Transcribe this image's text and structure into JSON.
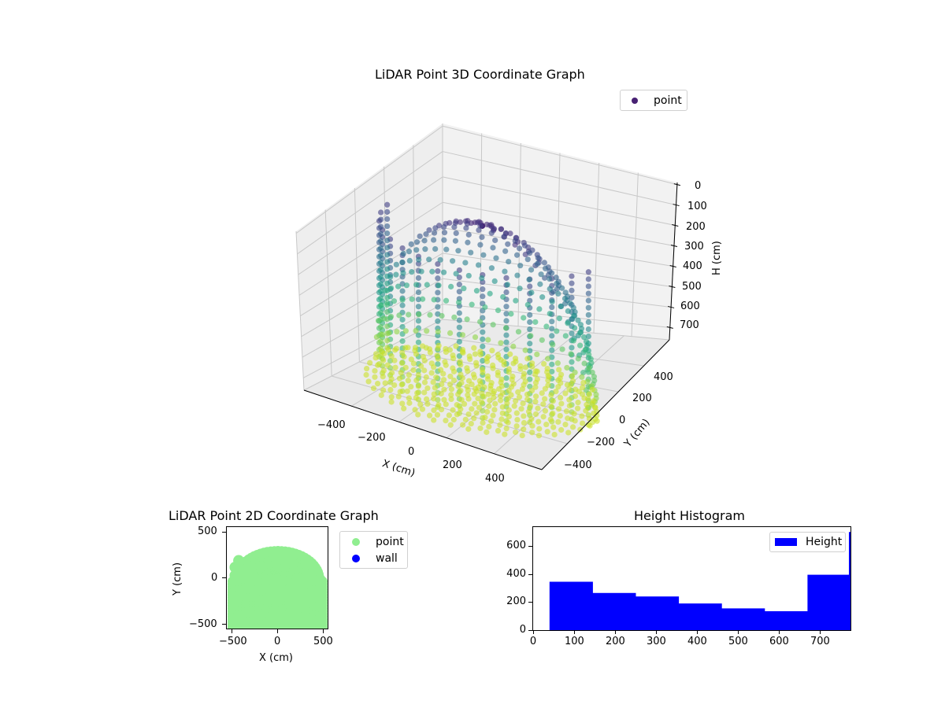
{
  "chart_data": [
    {
      "type": "scatter",
      "subtype": "3d",
      "title": "LiDAR Point 3D Coordinate Graph",
      "xlabel": "X (cm)",
      "ylabel": "Y (cm)",
      "zlabel": "H (cm)",
      "x_ticks": [
        "−400",
        "−200",
        "0",
        "200",
        "400"
      ],
      "y_ticks": [
        "−400",
        "−200",
        "0",
        "200",
        "400"
      ],
      "z_ticks": [
        "0",
        "100",
        "200",
        "300",
        "400",
        "500",
        "600",
        "700"
      ],
      "zlim": [
        0,
        770
      ],
      "z_inverted": true,
      "colormap": "viridis",
      "legend": [
        {
          "label": "point",
          "color": "#482173"
        }
      ],
      "legend_position": "upper right",
      "shape": "dome / half-cylinder room scan, radius ~500 cm, height 0-770 cm"
    },
    {
      "type": "scatter",
      "title": "LiDAR Point 2D Coordinate Graph",
      "xlabel": "X (cm)",
      "ylabel": "Y (cm)",
      "x_ticks": [
        "−500",
        "0",
        "500"
      ],
      "y_ticks": [
        "−500",
        "0",
        "500"
      ],
      "xlim": [
        -560,
        560
      ],
      "ylim": [
        -560,
        580
      ],
      "series": [
        {
          "name": "point",
          "color": "#90ee90",
          "extent": "filled half-disk, x -500..500, y -560..320"
        },
        {
          "name": "wall",
          "color": "#0000ff",
          "values": []
        }
      ],
      "legend_position": "outside right"
    },
    {
      "type": "bar",
      "subtype": "histogram",
      "title": "Height Histogram",
      "xlabel": "",
      "ylabel": "",
      "bin_edges": [
        40,
        145,
        250,
        355,
        460,
        565,
        670,
        775
      ],
      "categories": [
        "40-145",
        "145-250",
        "250-355",
        "355-460",
        "460-565",
        "565-670",
        "670-775"
      ],
      "values": [
        345,
        265,
        240,
        190,
        155,
        135,
        395
      ],
      "extra_thin_bar": {
        "x": 773,
        "value": 700
      },
      "x_ticks": [
        "0",
        "100",
        "200",
        "300",
        "400",
        "500",
        "600",
        "700"
      ],
      "y_ticks": [
        "0",
        "200",
        "400",
        "600"
      ],
      "xlim": [
        0,
        775
      ],
      "ylim": [
        0,
        735
      ],
      "color": "#0000ff",
      "legend": [
        {
          "label": "Height",
          "color": "#0000ff"
        }
      ],
      "legend_position": "upper right"
    }
  ],
  "plot3d": {
    "title": "LiDAR Point 3D Coordinate Graph",
    "legend_label": "point",
    "xlabel": "X (cm)",
    "ylabel": "Y (cm)",
    "zlabel": "H (cm)"
  },
  "plot2d": {
    "title": "LiDAR Point 2D Coordinate Graph",
    "xlabel": "X (cm)",
    "ylabel": "Y (cm)",
    "legend": [
      {
        "label": "point"
      },
      {
        "label": "wall"
      }
    ]
  },
  "hist": {
    "title": "Height Histogram",
    "legend_label": "Height"
  }
}
